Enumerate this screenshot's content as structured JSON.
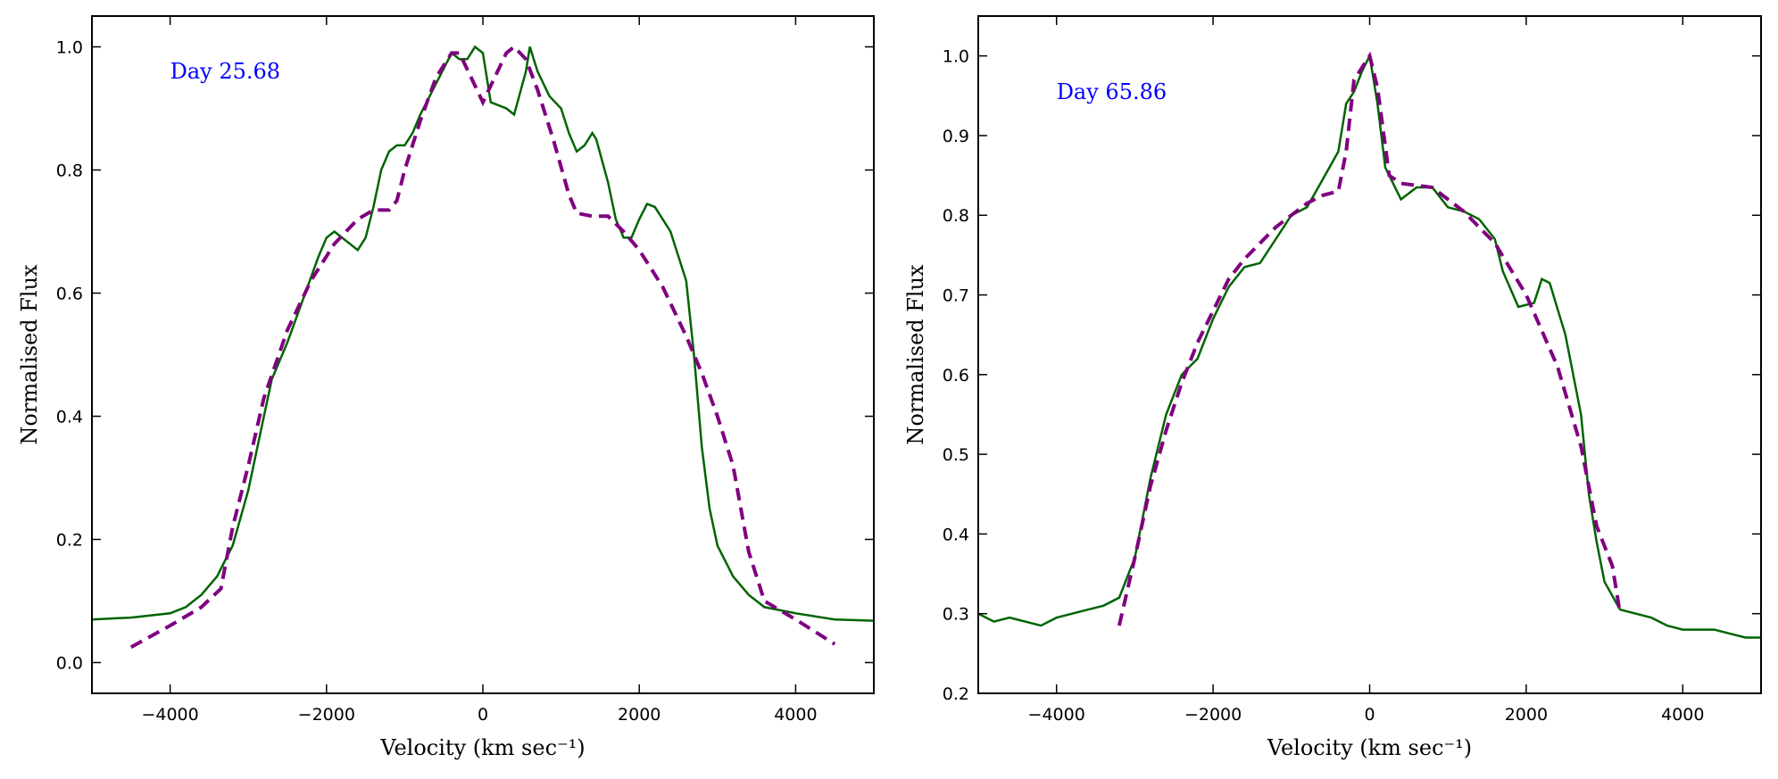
{
  "chart_data": [
    {
      "type": "line",
      "annotation": "Day 25.68",
      "annotation_color": "#0000ff",
      "annotation_x": -4000,
      "annotation_y": 0.96,
      "xlabel": "Velocity (km sec⁻¹)",
      "ylabel": "Normalised Flux",
      "xlim": [
        -5000,
        5000
      ],
      "ylim": [
        -0.05,
        1.05
      ],
      "xticks": [
        {
          "value": -4000,
          "label": "−4000"
        },
        {
          "value": -2000,
          "label": "−2000"
        },
        0,
        2000,
        4000
      ],
      "yticks": [
        {
          "value": 0,
          "label": "0.0"
        },
        0.2,
        0.4,
        0.6,
        0.8,
        {
          "value": 1,
          "label": "1.0"
        }
      ],
      "series": [
        {
          "color": "#006400",
          "linestyle": "solid",
          "x": [
            -5000,
            -4500,
            -4000,
            -3800,
            -3600,
            -3400,
            -3200,
            -3000,
            -2800,
            -2700,
            -2500,
            -2300,
            -2100,
            -2000,
            -1900,
            -1800,
            -1600,
            -1500,
            -1400,
            -1300,
            -1200,
            -1100,
            -1000,
            -900,
            -800,
            -600,
            -400,
            -300,
            -200,
            -100,
            0,
            100,
            300,
            400,
            550,
            600,
            700,
            850,
            1000,
            1100,
            1200,
            1300,
            1400,
            1450,
            1600,
            1700,
            1800,
            1900,
            2000,
            2100,
            2200,
            2400,
            2600,
            2700,
            2800,
            2900,
            3000,
            3200,
            3400,
            3600,
            4000,
            4500,
            5000
          ],
          "values": [
            0.07,
            0.073,
            0.08,
            0.09,
            0.11,
            0.14,
            0.19,
            0.28,
            0.4,
            0.46,
            0.52,
            0.59,
            0.66,
            0.69,
            0.7,
            0.69,
            0.67,
            0.69,
            0.74,
            0.8,
            0.83,
            0.84,
            0.84,
            0.86,
            0.89,
            0.94,
            0.99,
            0.98,
            0.98,
            1.0,
            0.99,
            0.91,
            0.9,
            0.89,
            0.96,
            1.0,
            0.96,
            0.92,
            0.9,
            0.86,
            0.83,
            0.84,
            0.86,
            0.85,
            0.78,
            0.72,
            0.69,
            0.69,
            0.72,
            0.745,
            0.74,
            0.7,
            0.62,
            0.5,
            0.35,
            0.25,
            0.19,
            0.14,
            0.11,
            0.09,
            0.08,
            0.07,
            0.068
          ]
        },
        {
          "color": "#800080",
          "linestyle": "dashed",
          "x": [
            -4500,
            -4000,
            -3600,
            -3350,
            -3200,
            -3000,
            -2800,
            -2500,
            -2200,
            -1900,
            -1600,
            -1400,
            -1200,
            -1100,
            -1000,
            -800,
            -600,
            -400,
            -300,
            -150,
            0,
            150,
            300,
            400,
            550,
            700,
            900,
            1100,
            1200,
            1400,
            1600,
            1800,
            2000,
            2300,
            2600,
            2800,
            3000,
            3200,
            3400,
            3600,
            4000,
            4500
          ],
          "values": [
            0.025,
            0.06,
            0.09,
            0.12,
            0.22,
            0.32,
            0.43,
            0.54,
            0.62,
            0.68,
            0.72,
            0.735,
            0.735,
            0.75,
            0.8,
            0.88,
            0.95,
            0.99,
            0.99,
            0.95,
            0.91,
            0.95,
            0.99,
            1.0,
            0.98,
            0.93,
            0.85,
            0.76,
            0.73,
            0.725,
            0.725,
            0.7,
            0.67,
            0.61,
            0.53,
            0.47,
            0.4,
            0.32,
            0.18,
            0.1,
            0.07,
            0.03
          ]
        }
      ]
    },
    {
      "type": "line",
      "annotation": "Day 65.86",
      "annotation_color": "#0000ff",
      "annotation_x": -4000,
      "annotation_y": 0.955,
      "xlabel": "Velocity (km sec⁻¹)",
      "ylabel": "Normalised Flux",
      "xlim": [
        -5000,
        5000
      ],
      "ylim": [
        0.2,
        1.05
      ],
      "xticks": [
        {
          "value": -4000,
          "label": "−4000"
        },
        {
          "value": -2000,
          "label": "−2000"
        },
        0,
        2000,
        4000
      ],
      "yticks": [
        0.2,
        0.3,
        0.4,
        0.5,
        0.6,
        0.7,
        0.8,
        0.9,
        {
          "value": 1,
          "label": "1.0"
        }
      ],
      "series": [
        {
          "color": "#006400",
          "linestyle": "solid",
          "x": [
            -5000,
            -4800,
            -4600,
            -4400,
            -4200,
            -4000,
            -3800,
            -3600,
            -3400,
            -3200,
            -3000,
            -2800,
            -2600,
            -2400,
            -2200,
            -2000,
            -1800,
            -1600,
            -1400,
            -1200,
            -1000,
            -800,
            -600,
            -400,
            -300,
            -200,
            -100,
            0,
            100,
            200,
            400,
            600,
            800,
            1000,
            1200,
            1400,
            1600,
            1700,
            1900,
            2100,
            2200,
            2300,
            2500,
            2700,
            2800,
            2900,
            3000,
            3200,
            3400,
            3600,
            3800,
            4000,
            4400,
            4800,
            5000
          ],
          "values": [
            0.3,
            0.29,
            0.295,
            0.29,
            0.285,
            0.295,
            0.3,
            0.305,
            0.31,
            0.32,
            0.37,
            0.47,
            0.55,
            0.6,
            0.62,
            0.67,
            0.71,
            0.735,
            0.74,
            0.77,
            0.8,
            0.81,
            0.845,
            0.88,
            0.94,
            0.955,
            0.98,
            1.0,
            0.94,
            0.86,
            0.82,
            0.835,
            0.835,
            0.81,
            0.805,
            0.795,
            0.77,
            0.73,
            0.685,
            0.69,
            0.72,
            0.715,
            0.65,
            0.55,
            0.45,
            0.39,
            0.34,
            0.305,
            0.3,
            0.295,
            0.285,
            0.28,
            0.28,
            0.27,
            0.27
          ]
        },
        {
          "color": "#800080",
          "linestyle": "dashed",
          "x": [
            -3200,
            -3000,
            -2800,
            -2600,
            -2400,
            -2200,
            -2000,
            -1800,
            -1600,
            -1400,
            -1200,
            -1000,
            -800,
            -600,
            -400,
            -300,
            -200,
            0,
            100,
            250,
            400,
            800,
            1200,
            1600,
            2000,
            2400,
            2700,
            2900,
            3100,
            3200
          ],
          "values": [
            0.285,
            0.37,
            0.46,
            0.53,
            0.59,
            0.64,
            0.68,
            0.72,
            0.745,
            0.765,
            0.785,
            0.8,
            0.815,
            0.825,
            0.83,
            0.88,
            0.97,
            1.0,
            0.96,
            0.85,
            0.84,
            0.835,
            0.805,
            0.765,
            0.7,
            0.61,
            0.51,
            0.41,
            0.36,
            0.3
          ]
        }
      ]
    }
  ]
}
